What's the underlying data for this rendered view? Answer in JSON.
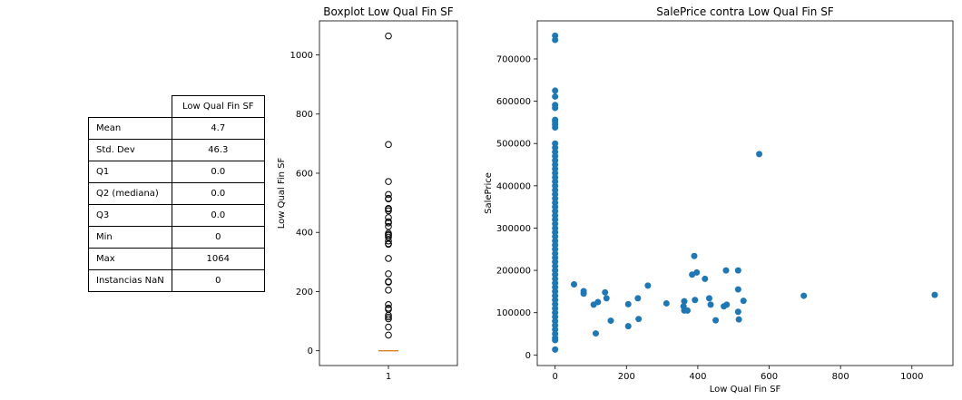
{
  "table": {
    "column_header": "Low Qual Fin SF",
    "rows": [
      {
        "label": "Mean",
        "value": "4.7"
      },
      {
        "label": "Std. Dev",
        "value": "46.3"
      },
      {
        "label": "Q1",
        "value": "0.0"
      },
      {
        "label": "Q2 (mediana)",
        "value": "0.0"
      },
      {
        "label": "Q3",
        "value": "0.0"
      },
      {
        "label": "Min",
        "value": "0"
      },
      {
        "label": "Max",
        "value": "1064"
      },
      {
        "label": "Instancias NaN",
        "value": "0"
      }
    ]
  },
  "chart_data": [
    {
      "type": "box",
      "title": "Boxplot Low Qual Fin SF",
      "xlabel": "",
      "ylabel": "Low Qual Fin SF",
      "categories": [
        "1"
      ],
      "box": {
        "min": 0,
        "q1": 0,
        "median": 0,
        "q3": 0,
        "max": 0
      },
      "outliers": [
        1064,
        697,
        572,
        528,
        515,
        513,
        481,
        479,
        473,
        450,
        436,
        432,
        420,
        397,
        392,
        390,
        384,
        371,
        362,
        360,
        312,
        260,
        234,
        232,
        205,
        156,
        144,
        140,
        120,
        114,
        108,
        80,
        53
      ],
      "ylim": [
        -50,
        1115
      ],
      "yticks": [
        0,
        200,
        400,
        600,
        800,
        1000
      ]
    },
    {
      "type": "scatter",
      "title": "SalePrice contra Low Qual Fin SF",
      "xlabel": "Low Qual Fin SF",
      "ylabel": "SalePrice",
      "xlim": [
        -50,
        1115
      ],
      "ylim": [
        -25000,
        790000
      ],
      "xticks": [
        0,
        200,
        400,
        600,
        800,
        1000
      ],
      "yticks": [
        0,
        100000,
        200000,
        300000,
        400000,
        500000,
        600000,
        700000
      ],
      "color": "#1f77b4",
      "x_zero_values": [
        755000,
        745000,
        625000,
        611000,
        591000,
        584000,
        556000,
        552000,
        545000,
        538000,
        500000,
        490000,
        480000,
        470000,
        460000,
        450000,
        440000,
        430000,
        420000,
        410000,
        400000,
        390000,
        380000,
        370000,
        360000,
        350000,
        340000,
        330000,
        320000,
        310000,
        300000,
        290000,
        280000,
        270000,
        260000,
        250000,
        240000,
        230000,
        220000,
        210000,
        200000,
        190000,
        180000,
        170000,
        160000,
        150000,
        140000,
        130000,
        120000,
        110000,
        100000,
        90000,
        80000,
        70000,
        60000,
        50000,
        40000,
        35000,
        12789
      ],
      "points": [
        {
          "x": 53,
          "y": 167000
        },
        {
          "x": 80,
          "y": 151000
        },
        {
          "x": 80,
          "y": 145000
        },
        {
          "x": 108,
          "y": 119000
        },
        {
          "x": 114,
          "y": 51000
        },
        {
          "x": 120,
          "y": 125000
        },
        {
          "x": 140,
          "y": 148000
        },
        {
          "x": 144,
          "y": 134000
        },
        {
          "x": 156,
          "y": 81000
        },
        {
          "x": 205,
          "y": 120000
        },
        {
          "x": 205,
          "y": 68000
        },
        {
          "x": 232,
          "y": 134000
        },
        {
          "x": 234,
          "y": 85000
        },
        {
          "x": 260,
          "y": 164000
        },
        {
          "x": 312,
          "y": 122000
        },
        {
          "x": 360,
          "y": 115000
        },
        {
          "x": 362,
          "y": 127000
        },
        {
          "x": 362,
          "y": 105000
        },
        {
          "x": 371,
          "y": 105000
        },
        {
          "x": 384,
          "y": 190000
        },
        {
          "x": 390,
          "y": 234000
        },
        {
          "x": 392,
          "y": 130000
        },
        {
          "x": 397,
          "y": 195000
        },
        {
          "x": 420,
          "y": 180000
        },
        {
          "x": 432,
          "y": 134000
        },
        {
          "x": 436,
          "y": 119000
        },
        {
          "x": 450,
          "y": 82000
        },
        {
          "x": 473,
          "y": 115000
        },
        {
          "x": 479,
          "y": 200000
        },
        {
          "x": 481,
          "y": 119000
        },
        {
          "x": 513,
          "y": 200000
        },
        {
          "x": 513,
          "y": 155000
        },
        {
          "x": 513,
          "y": 102000
        },
        {
          "x": 515,
          "y": 84000
        },
        {
          "x": 528,
          "y": 128000
        },
        {
          "x": 572,
          "y": 475000
        },
        {
          "x": 697,
          "y": 140000
        },
        {
          "x": 1064,
          "y": 142000
        }
      ]
    }
  ]
}
